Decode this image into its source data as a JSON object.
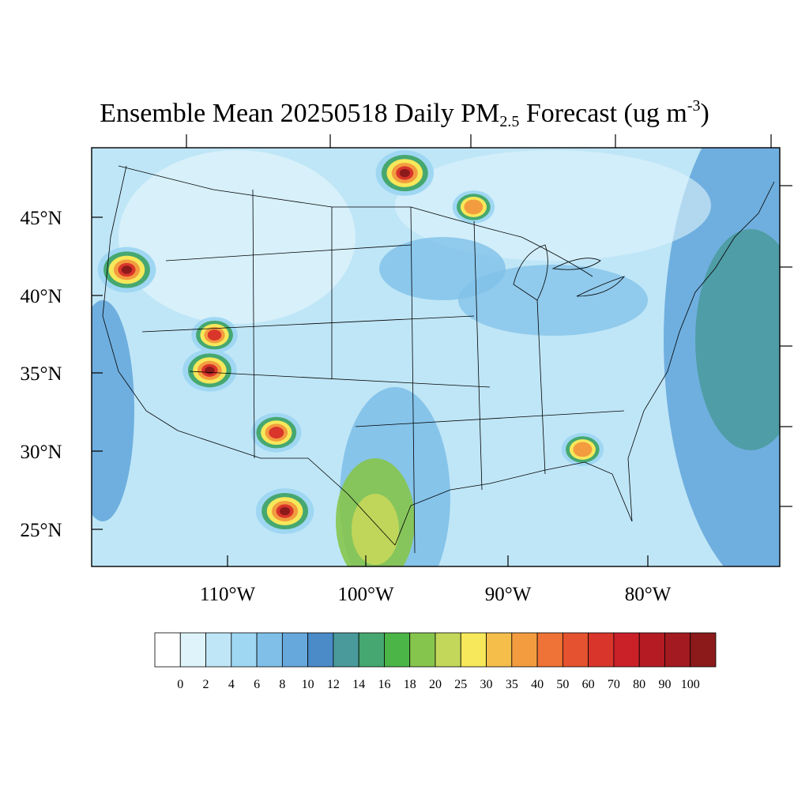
{
  "title": {
    "prefix": "Ensemble Mean 20250518 Daily PM",
    "subscript": "2.5",
    "middle": " Forecast (ug m",
    "superscript": "-3",
    "suffix": ")"
  },
  "map": {
    "projection": "lambert-conformal",
    "region": "contiguous-united-states",
    "lat_ticks": [
      {
        "label": "45°N"
      },
      {
        "label": "40°N"
      },
      {
        "label": "35°N"
      },
      {
        "label": "30°N"
      },
      {
        "label": "25°N"
      }
    ],
    "lon_ticks": [
      {
        "label": "110°W"
      },
      {
        "label": "100°W"
      },
      {
        "label": "90°W"
      },
      {
        "label": "80°W"
      }
    ],
    "background_level": 4,
    "hotspots": [
      {
        "name": "minnesota-north-dakota-plume",
        "lat": 47.6,
        "lon": -96.9,
        "peak": 100
      },
      {
        "name": "wisconsin-spot",
        "lat": 45.5,
        "lon": -92.0,
        "peak": 60
      },
      {
        "name": "idaho-oregon-spot",
        "lat": 42.8,
        "lon": -117.0,
        "peak": 100
      },
      {
        "name": "utah-spot",
        "lat": 38.0,
        "lon": -110.8,
        "peak": 70
      },
      {
        "name": "arizona-spot",
        "lat": 35.8,
        "lon": -111.2,
        "peak": 90
      },
      {
        "name": "new-mexico-spot",
        "lat": 31.5,
        "lon": -106.5,
        "peak": 80
      },
      {
        "name": "northern-mexico-spot",
        "lat": 26.5,
        "lon": -106.0,
        "peak": 100
      },
      {
        "name": "florida-georgia-spot",
        "lat": 30.5,
        "lon": -84.5,
        "peak": 60
      }
    ]
  },
  "colorbar": {
    "colors": [
      "#ffffff",
      "#dff3fb",
      "#bfe6f7",
      "#9fd7f3",
      "#80c0e8",
      "#66a8dc",
      "#4a8bc8",
      "#4a9a9c",
      "#46a870",
      "#4cb548",
      "#86c54d",
      "#c3d75a",
      "#f6e85a",
      "#f5be4b",
      "#f39c3f",
      "#ef7336",
      "#e5522f",
      "#d9352b",
      "#ca2028",
      "#b51b23",
      "#a31a20",
      "#8c1a1a"
    ],
    "labels": [
      "0",
      "2",
      "4",
      "6",
      "8",
      "10",
      "12",
      "14",
      "16",
      "18",
      "20",
      "25",
      "30",
      "35",
      "40",
      "50",
      "60",
      "70",
      "80",
      "90",
      "100"
    ]
  }
}
